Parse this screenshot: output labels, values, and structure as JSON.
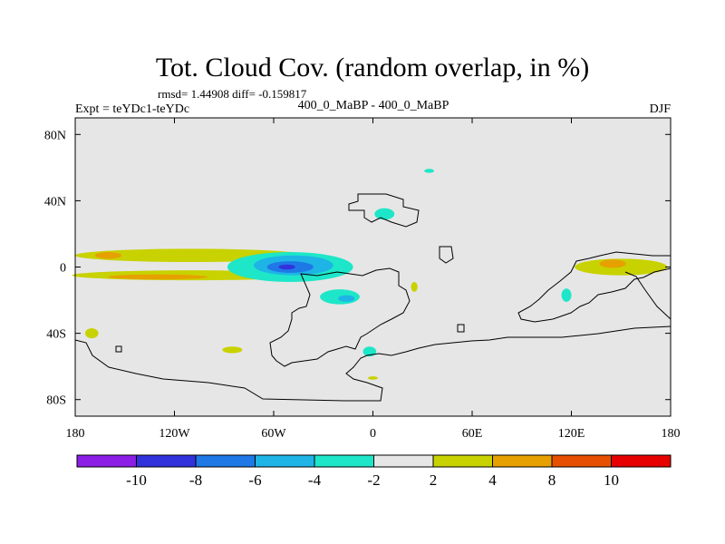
{
  "chart_data": {
    "type": "heatmap",
    "title": "Tot. Cloud Cov. (random overlap, in %)",
    "stats": "rmsd= 1.44908 diff= -0.159817",
    "experiment": "Expt = teYDc1-teYDc",
    "subtitle": "400_0_MaBP - 400_0_MaBP",
    "season": "DJF",
    "xlim": [
      -180,
      180
    ],
    "ylim": [
      -90,
      90
    ],
    "x_ticks": [
      {
        "value": -180,
        "label": "180"
      },
      {
        "value": -120,
        "label": "120W"
      },
      {
        "value": -60,
        "label": "60W"
      },
      {
        "value": 0,
        "label": "0"
      },
      {
        "value": 60,
        "label": "60E"
      },
      {
        "value": 120,
        "label": "120E"
      },
      {
        "value": 180,
        "label": "180"
      }
    ],
    "y_ticks": [
      {
        "value": 80,
        "label": "80N"
      },
      {
        "value": 40,
        "label": "40N"
      },
      {
        "value": 0,
        "label": "0"
      },
      {
        "value": -40,
        "label": "40S"
      },
      {
        "value": -80,
        "label": "80S"
      }
    ],
    "colorbar": {
      "colors": [
        "#8c1ee6",
        "#3232dc",
        "#1e78e6",
        "#1eb4e6",
        "#1ee6c8",
        "#e6e6e6",
        "#c8d200",
        "#e6a000",
        "#e65000",
        "#e60000"
      ],
      "labels": [
        "-10",
        "-8",
        "-6",
        "-4",
        "-2",
        "2",
        "4",
        "8",
        "10"
      ]
    },
    "background_color": "#e6e6e6",
    "anomalies": [
      {
        "name": "south-pacific-convergence-band",
        "lon": -110,
        "lat": 7,
        "rx": 70,
        "ry": 4,
        "bin": 6
      },
      {
        "name": "pacific-band-orange",
        "lon": -160,
        "lat": 7,
        "rx": 8,
        "ry": 2,
        "bin": 7
      },
      {
        "name": "south-pacific-band",
        "lon": -110,
        "lat": -5,
        "rx": 72,
        "ry": 3,
        "bin": 6
      },
      {
        "name": "south-pacific-band-orange",
        "lon": -130,
        "lat": -6,
        "rx": 30,
        "ry": 1.5,
        "bin": 7
      },
      {
        "name": "central-negative-outer",
        "lon": -50,
        "lat": 0,
        "rx": 38,
        "ry": 9,
        "bin": 4
      },
      {
        "name": "central-negative-mid",
        "lon": -48,
        "lat": 1,
        "rx": 24,
        "ry": 6,
        "bin": 3
      },
      {
        "name": "central-negative-inner",
        "lon": -50,
        "lat": 0,
        "rx": 14,
        "ry": 3.5,
        "bin": 2
      },
      {
        "name": "central-negative-core",
        "lon": -52,
        "lat": 0,
        "rx": 5,
        "ry": 1.5,
        "bin": 1
      },
      {
        "name": "north-atlantic-negative",
        "lon": 7,
        "lat": 32,
        "rx": 6,
        "ry": 3.5,
        "bin": 4
      },
      {
        "name": "south-atlantic-negative",
        "lon": -20,
        "lat": -18,
        "rx": 12,
        "ry": 4.5,
        "bin": 4
      },
      {
        "name": "south-atlantic-negative-inner",
        "lon": -16,
        "lat": -19,
        "rx": 5,
        "ry": 2,
        "bin": 3
      },
      {
        "name": "southern-negative-patch",
        "lon": -2,
        "lat": -51,
        "rx": 4,
        "ry": 3,
        "bin": 4
      },
      {
        "name": "arctic-negative-patch",
        "lon": 34,
        "lat": 58,
        "rx": 3,
        "ry": 1.2,
        "bin": 4
      },
      {
        "name": "indian-ocean-negative",
        "lon": 117,
        "lat": -17,
        "rx": 3,
        "ry": 4,
        "bin": 4
      },
      {
        "name": "east-positive-band",
        "lon": 150,
        "lat": 0,
        "rx": 28,
        "ry": 5,
        "bin": 6
      },
      {
        "name": "east-positive-core",
        "lon": 145,
        "lat": 2,
        "rx": 8,
        "ry": 2.5,
        "bin": 7
      },
      {
        "name": "south-positive-patch",
        "lon": -170,
        "lat": -40,
        "rx": 4,
        "ry": 3,
        "bin": 6
      },
      {
        "name": "south-positive-patch-2",
        "lon": -85,
        "lat": -50,
        "rx": 6,
        "ry": 2,
        "bin": 6
      },
      {
        "name": "southern-ocean-positive",
        "lon": 0,
        "lat": -67,
        "rx": 3,
        "ry": 1,
        "bin": 6
      },
      {
        "name": "west-australia-positive",
        "lon": 25,
        "lat": -12,
        "rx": 2,
        "ry": 3,
        "bin": 6
      }
    ]
  }
}
